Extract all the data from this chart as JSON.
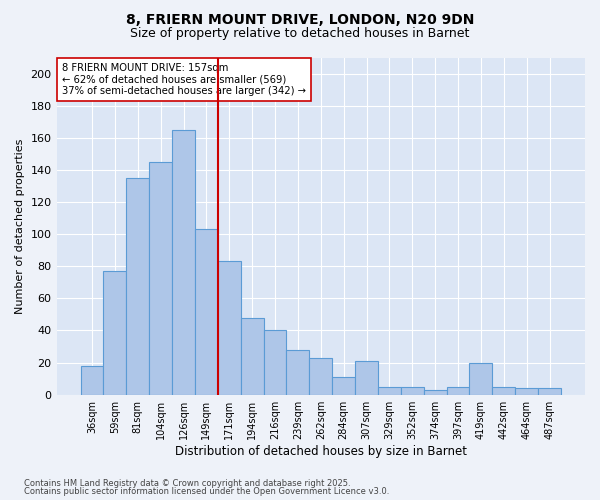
{
  "title1": "8, FRIERN MOUNT DRIVE, LONDON, N20 9DN",
  "title2": "Size of property relative to detached houses in Barnet",
  "categories": [
    "36sqm",
    "59sqm",
    "81sqm",
    "104sqm",
    "126sqm",
    "149sqm",
    "171sqm",
    "194sqm",
    "216sqm",
    "239sqm",
    "262sqm",
    "284sqm",
    "307sqm",
    "329sqm",
    "352sqm",
    "374sqm",
    "397sqm",
    "419sqm",
    "442sqm",
    "464sqm",
    "487sqm"
  ],
  "values": [
    18,
    77,
    135,
    145,
    165,
    103,
    83,
    48,
    40,
    28,
    23,
    11,
    21,
    5,
    5,
    3,
    5,
    20,
    5,
    4,
    4
  ],
  "bar_color": "#aec6e8",
  "bar_edge_color": "#5b9bd5",
  "bar_width": 1.0,
  "red_line_x": 5.5,
  "ylabel": "Number of detached properties",
  "xlabel": "Distribution of detached houses by size in Barnet",
  "ylim": [
    0,
    210
  ],
  "yticks": [
    0,
    20,
    40,
    60,
    80,
    100,
    120,
    140,
    160,
    180,
    200
  ],
  "annotation_title": "8 FRIERN MOUNT DRIVE: 157sqm",
  "annotation_line1": "← 62% of detached houses are smaller (569)",
  "annotation_line2": "37% of semi-detached houses are larger (342) →",
  "footnote1": "Contains HM Land Registry data © Crown copyright and database right 2025.",
  "footnote2": "Contains public sector information licensed under the Open Government Licence v3.0.",
  "bg_color": "#eef2f9",
  "plot_bg_color": "#dce6f5",
  "grid_color": "#ffffff",
  "title_fontsize": 10,
  "subtitle_fontsize": 9,
  "annotation_box_color": "#ffffff",
  "annotation_box_edge": "#cc0000"
}
